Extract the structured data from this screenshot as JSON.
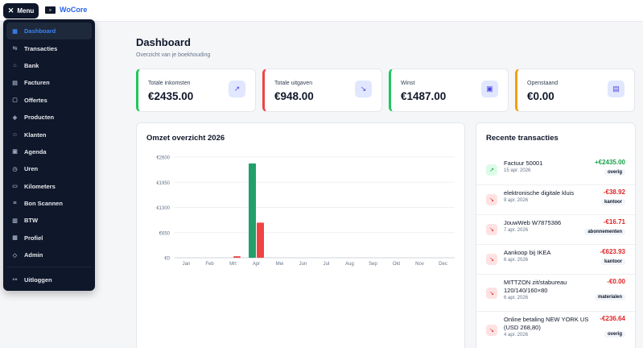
{
  "topbar": {
    "menu_label": "Menu",
    "logo_glyph": "≡",
    "brand": "WoCore"
  },
  "sidebar": {
    "items": [
      {
        "label": "Dashboard",
        "icon": "grid-icon",
        "glyph": "▦",
        "active": true
      },
      {
        "label": "Transacties",
        "icon": "arrows-icon",
        "glyph": "⇆"
      },
      {
        "label": "Bank",
        "icon": "bank-icon",
        "glyph": "⌂"
      },
      {
        "label": "Facturen",
        "icon": "file-icon",
        "glyph": "▤"
      },
      {
        "label": "Offertes",
        "icon": "file-check-icon",
        "glyph": "▢"
      },
      {
        "label": "Producten",
        "icon": "box-icon",
        "glyph": "◈"
      },
      {
        "label": "Klanten",
        "icon": "users-icon",
        "glyph": "☺"
      },
      {
        "label": "Agenda",
        "icon": "calendar-icon",
        "glyph": "▣"
      },
      {
        "label": "Uren",
        "icon": "clock-icon",
        "glyph": "◷"
      },
      {
        "label": "Kilometers",
        "icon": "car-icon",
        "glyph": "▭"
      },
      {
        "label": "Bon Scannen",
        "icon": "scan-icon",
        "glyph": "⌗"
      },
      {
        "label": "BTW",
        "icon": "calculator-icon",
        "glyph": "▥"
      },
      {
        "label": "Profiel",
        "icon": "building-icon",
        "glyph": "▦"
      },
      {
        "label": "Admin",
        "icon": "shield-icon",
        "glyph": "◇"
      }
    ],
    "logout": {
      "label": "Uitloggen",
      "icon": "logout-icon",
      "glyph": "↦"
    }
  },
  "header": {
    "title": "Dashboard",
    "subtitle": "Overzicht van je boekhouding"
  },
  "stats": [
    {
      "label": "Totale inkomsten",
      "value": "€2435.00",
      "accent": "#22c55e",
      "icon": "trending-up-icon",
      "glyph": "↗"
    },
    {
      "label": "Totale uitgaven",
      "value": "€948.00",
      "accent": "#ef4444",
      "icon": "trending-down-icon",
      "glyph": "↘"
    },
    {
      "label": "Winst",
      "value": "€1487.00",
      "accent": "#22c55e",
      "icon": "wallet-icon",
      "glyph": "▣"
    },
    {
      "label": "Openstaand",
      "value": "€0.00",
      "accent": "#f59e0b",
      "icon": "document-icon",
      "glyph": "▤"
    }
  ],
  "chart_card": {
    "title": "Omzet overzicht 2026"
  },
  "chart_data": {
    "type": "bar",
    "categories": [
      "Jan",
      "Feb",
      "Mrt",
      "Apr",
      "Mei",
      "Jun",
      "Jul",
      "Aug",
      "Sep",
      "Okt",
      "Nov",
      "Dec"
    ],
    "series": [
      {
        "values": [
          0,
          0,
          0,
          2435,
          0,
          0,
          0,
          0,
          0,
          0,
          0,
          0
        ],
        "color": "#22a06b"
      },
      {
        "values": [
          0,
          0,
          40,
          908,
          0,
          0,
          0,
          0,
          0,
          0,
          0,
          0
        ],
        "color": "#ef4444"
      }
    ],
    "yticks": [
      "€0",
      "€650",
      "€1300",
      "€1950",
      "€2600"
    ],
    "ytick_values": [
      0,
      650,
      1300,
      1950,
      2600
    ],
    "ylim": [
      0,
      2600
    ],
    "grid": true
  },
  "tx_card": {
    "title": "Recente transacties"
  },
  "transactions": [
    {
      "dir": "in",
      "glyph": "↗",
      "desc": "Factuur 50001",
      "date": "15 apr. 2026",
      "amount": "+€2435.00",
      "cat": "overig"
    },
    {
      "dir": "out",
      "glyph": "↘",
      "desc": "elektronische digitale kluis",
      "date": "9 apr. 2026",
      "amount": "-€38.92",
      "cat": "kantoor"
    },
    {
      "dir": "out",
      "glyph": "↘",
      "desc": "JouwWeb W7875386",
      "date": "7 apr. 2026",
      "amount": "-€16.71",
      "cat": "abonnementen"
    },
    {
      "dir": "out",
      "glyph": "↘",
      "desc": "Aankoop bij IKEA",
      "date": "6 apr. 2026",
      "amount": "-€623.93",
      "cat": "kantoor"
    },
    {
      "dir": "out",
      "glyph": "↘",
      "desc": "MITTZON zit/stabureau 120/140/160×80",
      "date": "6 apr. 2026",
      "amount": "-€0.00",
      "cat": "materialen"
    },
    {
      "dir": "out",
      "glyph": "↘",
      "desc": "Online betaling NEW YORK US (USD 268,80)",
      "date": "4 apr. 2026",
      "amount": "-€236.64",
      "cat": "overig"
    }
  ]
}
